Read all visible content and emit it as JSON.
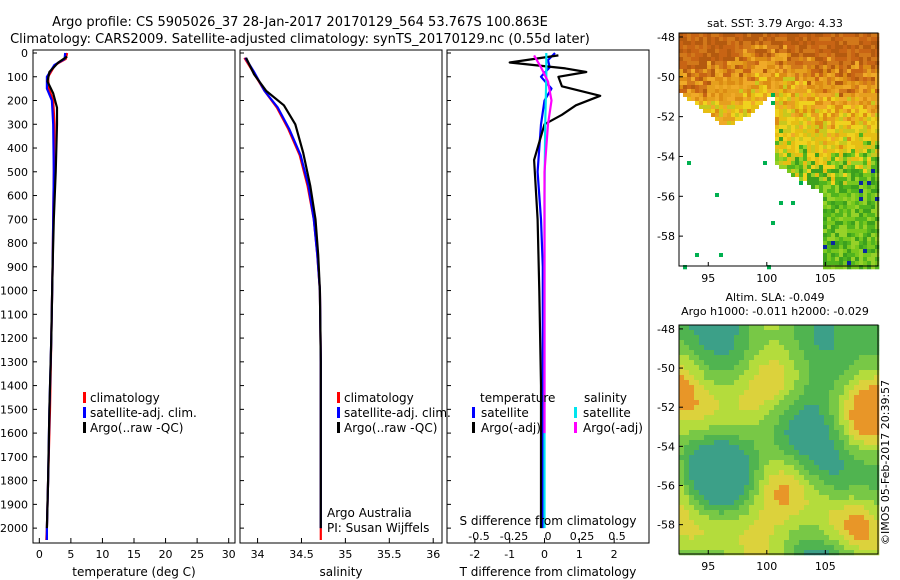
{
  "figure": {
    "title_line1": "Argo profile: CS 5905026_37 28-Jan-2017 20170129_564 53.767S 100.863E",
    "title_line2": "Climatology: CARS2009. Satellite-adjusted climatology: synTS_20170129.nc (0.55d later)",
    "credit": "©IMOS 05-Feb-2017 20:39:57",
    "annotation_line1": "Argo Australia",
    "annotation_line2": "PI: Susan Wijffels"
  },
  "colors": {
    "climatology": "#ff0000",
    "satellite": "#0000ff",
    "argo": "#000000",
    "sal_satellite": "#00e5ee",
    "sal_argo": "#ff00ff"
  },
  "depth_axis": {
    "ticks": [
      0,
      100,
      200,
      300,
      400,
      500,
      600,
      700,
      800,
      900,
      1000,
      1100,
      1200,
      1300,
      1400,
      1500,
      1600,
      1700,
      1800,
      1900,
      2000
    ]
  },
  "legends": {
    "profile": [
      "climatology",
      "satellite-adj. clim.",
      "Argo(..raw -QC)"
    ],
    "diff_headers": [
      "temperature",
      "salinity"
    ],
    "diff_items": [
      "satellite",
      "Argo(-adj)"
    ]
  },
  "chart_data": [
    {
      "type": "line",
      "xlabel": "temperature (deg C)",
      "ylabel": "",
      "xlim": [
        -1,
        31
      ],
      "ylim": [
        2050,
        0
      ],
      "xticks": [
        0,
        5,
        10,
        15,
        20,
        25,
        30
      ],
      "series": [
        {
          "name": "climatology",
          "color": "#ff0000",
          "points": [
            [
              4.4,
              0
            ],
            [
              4.2,
              25
            ],
            [
              2.5,
              50
            ],
            [
              1.4,
              100
            ],
            [
              1.5,
              150
            ],
            [
              2.2,
              200
            ],
            [
              2.4,
              300
            ],
            [
              2.3,
              500
            ],
            [
              2.2,
              700
            ],
            [
              2.1,
              900
            ],
            [
              1.9,
              1200
            ],
            [
              1.7,
              1500
            ],
            [
              1.4,
              1800
            ],
            [
              1.2,
              2000
            ],
            [
              1.1,
              2050
            ]
          ]
        },
        {
          "name": "satellite-adj. clim.",
          "color": "#0000ff",
          "points": [
            [
              4.1,
              0
            ],
            [
              4.0,
              25
            ],
            [
              2.4,
              50
            ],
            [
              1.2,
              100
            ],
            [
              1.2,
              150
            ],
            [
              2.0,
              200
            ],
            [
              2.2,
              300
            ],
            [
              2.3,
              500
            ],
            [
              2.2,
              700
            ],
            [
              2.1,
              900
            ],
            [
              1.9,
              1200
            ],
            [
              1.6,
              1500
            ],
            [
              1.4,
              1800
            ],
            [
              1.2,
              2000
            ],
            [
              1.2,
              2050
            ]
          ]
        },
        {
          "name": "Argo(..raw -QC)",
          "color": "#000000",
          "points": [
            [
              4.4,
              15
            ],
            [
              3.0,
              40
            ],
            [
              1.6,
              80
            ],
            [
              1.3,
              120
            ],
            [
              2.2,
              170
            ],
            [
              2.8,
              230
            ],
            [
              2.8,
              300
            ],
            [
              2.6,
              500
            ],
            [
              2.3,
              700
            ],
            [
              2.1,
              900
            ],
            [
              1.9,
              1200
            ],
            [
              1.6,
              1500
            ],
            [
              1.4,
              1800
            ],
            [
              1.2,
              2000
            ]
          ]
        }
      ]
    },
    {
      "type": "line",
      "xlabel": "salinity",
      "ylabel": "",
      "xlim": [
        33.8,
        36.1
      ],
      "ylim": [
        2050,
        0
      ],
      "xticks": [
        34,
        34.5,
        35,
        35.5,
        36
      ],
      "xticklabels": [
        "34",
        "34.5",
        "35",
        "35.5",
        "36"
      ],
      "series": [
        {
          "name": "climatology",
          "color": "#ff0000",
          "points": [
            [
              33.85,
              20
            ],
            [
              33.95,
              80
            ],
            [
              34.08,
              160
            ],
            [
              34.22,
              230
            ],
            [
              34.35,
              320
            ],
            [
              34.48,
              430
            ],
            [
              34.57,
              560
            ],
            [
              34.64,
              700
            ],
            [
              34.68,
              850
            ],
            [
              34.71,
              1000
            ],
            [
              34.72,
              1300
            ],
            [
              34.72,
              1600
            ],
            [
              34.72,
              1900
            ],
            [
              34.72,
              2050
            ]
          ]
        },
        {
          "name": "satellite-adj. clim.",
          "color": "#0000ff",
          "points": [
            [
              33.86,
              20
            ],
            [
              33.96,
              80
            ],
            [
              34.08,
              160
            ],
            [
              34.23,
              230
            ],
            [
              34.36,
              320
            ],
            [
              34.49,
              430
            ],
            [
              34.58,
              560
            ],
            [
              34.64,
              700
            ],
            [
              34.68,
              850
            ],
            [
              34.71,
              1000
            ],
            [
              34.72,
              1300
            ],
            [
              34.72,
              1600
            ],
            [
              34.72,
              1900
            ],
            [
              34.72,
              2000
            ]
          ]
        },
        {
          "name": "Argo(..raw -QC)",
          "color": "#000000",
          "points": [
            [
              33.87,
              20
            ],
            [
              33.96,
              90
            ],
            [
              34.1,
              160
            ],
            [
              34.3,
              220
            ],
            [
              34.43,
              300
            ],
            [
              34.52,
              420
            ],
            [
              34.6,
              560
            ],
            [
              34.66,
              700
            ],
            [
              34.69,
              850
            ],
            [
              34.71,
              1000
            ],
            [
              34.72,
              1300
            ],
            [
              34.72,
              1600
            ],
            [
              34.72,
              1900
            ],
            [
              34.72,
              2000
            ]
          ]
        }
      ]
    },
    {
      "type": "line",
      "xlabel": "T difference from climatology",
      "top_xlabel": "S difference from climatology",
      "ylabel": "",
      "xlim": [
        -2.8,
        3.0
      ],
      "ylim": [
        2050,
        0
      ],
      "xticks": [
        -2,
        -1,
        0,
        1,
        2
      ],
      "top_ticks": [
        "-0.5",
        "-0.25",
        "0",
        "0.25",
        "0.5"
      ],
      "series": [
        {
          "name": "temperature satellite",
          "color": "#0000ff",
          "points": [
            [
              0.3,
              0
            ],
            [
              0.1,
              30
            ],
            [
              0.15,
              60
            ],
            [
              -0.1,
              100
            ],
            [
              0.2,
              150
            ],
            [
              0.0,
              200
            ],
            [
              -0.1,
              300
            ],
            [
              -0.2,
              500
            ],
            [
              -0.1,
              700
            ],
            [
              -0.05,
              900
            ],
            [
              -0.05,
              1200
            ],
            [
              -0.05,
              1500
            ],
            [
              -0.05,
              1800
            ],
            [
              -0.05,
              2000
            ]
          ]
        },
        {
          "name": "temperature Argo(-adj)",
          "color": "#000000",
          "points": [
            [
              0.4,
              10
            ],
            [
              -1.0,
              40
            ],
            [
              0.6,
              65
            ],
            [
              1.2,
              80
            ],
            [
              0.4,
              100
            ],
            [
              0.5,
              140
            ],
            [
              1.6,
              180
            ],
            [
              0.9,
              220
            ],
            [
              0.5,
              260
            ],
            [
              0.0,
              300
            ],
            [
              -0.3,
              450
            ],
            [
              -0.2,
              700
            ],
            [
              -0.15,
              1000
            ],
            [
              -0.1,
              1400
            ],
            [
              -0.1,
              1800
            ],
            [
              -0.1,
              2000
            ]
          ]
        },
        {
          "name": "salinity satellite",
          "color": "#00e5ee",
          "points": [
            [
              0.05,
              0
            ],
            [
              0.05,
              100
            ],
            [
              0.02,
              300
            ],
            [
              0.0,
              600
            ],
            [
              0.0,
              1000
            ],
            [
              0.0,
              1500
            ],
            [
              0.0,
              2000
            ]
          ]
        },
        {
          "name": "salinity Argo(-adj)",
          "color": "#ff00ff",
          "points": [
            [
              -0.3,
              10
            ],
            [
              -0.1,
              60
            ],
            [
              0.1,
              120
            ],
            [
              0.2,
              200
            ],
            [
              0.1,
              300
            ],
            [
              0.0,
              500
            ],
            [
              0.0,
              800
            ],
            [
              0.0,
              1200
            ],
            [
              0.0,
              1600
            ]
          ]
        }
      ]
    },
    {
      "type": "heatmap",
      "title": "sat. SST: 3.79 Argo: 4.33",
      "xticks": [
        95,
        100,
        105
      ],
      "yticks": [
        -48,
        -50,
        -52,
        -54,
        -56,
        -58
      ],
      "xlim": [
        92.5,
        109.5
      ],
      "ylim": [
        -59.5,
        -47.8
      ]
    },
    {
      "type": "heatmap",
      "title": "Altim. SLA: -0.049",
      "subtitle": "Argo h1000: -0.011 h2000: -0.029",
      "xticks": [
        95,
        100,
        105
      ],
      "yticks": [
        -48,
        -50,
        -52,
        -54,
        -56,
        -58
      ],
      "xlim": [
        92.5,
        109.5
      ],
      "ylim": [
        -59.5,
        -47.8
      ]
    }
  ]
}
